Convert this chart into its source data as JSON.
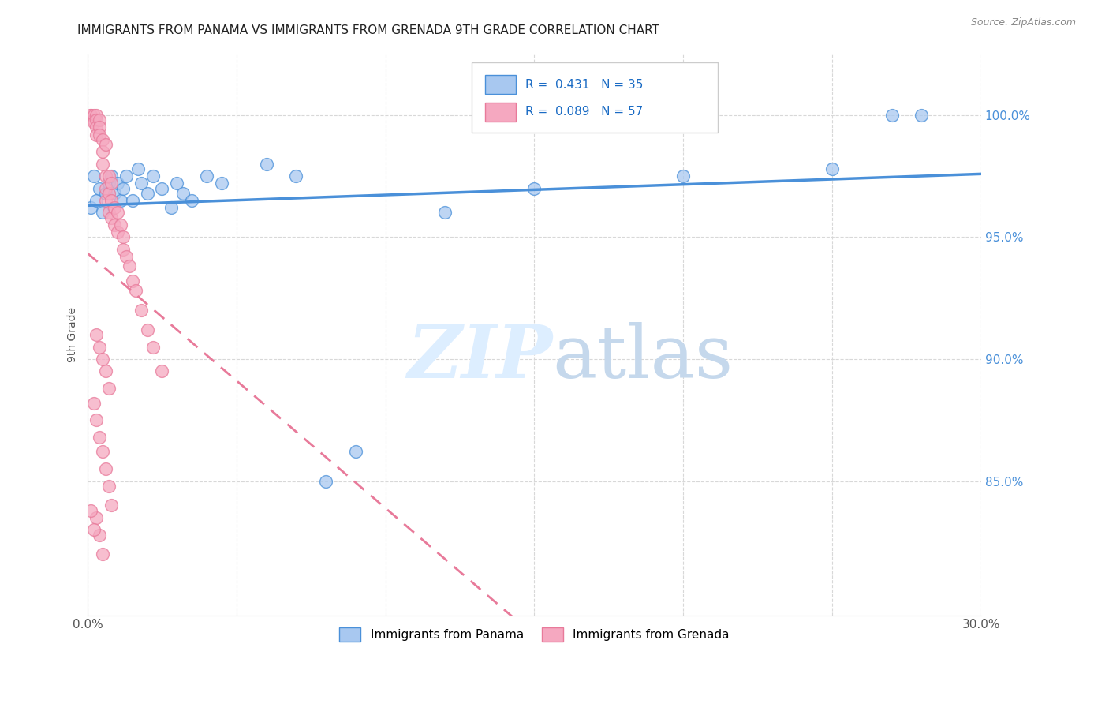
{
  "title": "IMMIGRANTS FROM PANAMA VS IMMIGRANTS FROM GRENADA 9TH GRADE CORRELATION CHART",
  "source": "Source: ZipAtlas.com",
  "ylabel": "9th Grade",
  "ytick_labels": [
    "100.0%",
    "95.0%",
    "90.0%",
    "85.0%"
  ],
  "ytick_values": [
    1.0,
    0.95,
    0.9,
    0.85
  ],
  "xlim": [
    0.0,
    0.3
  ],
  "ylim": [
    0.795,
    1.025
  ],
  "panama_color": "#a8c8f0",
  "grenada_color": "#f5a8c0",
  "panama_line_color": "#4a90d9",
  "grenada_line_color": "#e87a9a",
  "panama_x": [
    0.001,
    0.002,
    0.003,
    0.004,
    0.005,
    0.006,
    0.007,
    0.008,
    0.009,
    0.01,
    0.011,
    0.012,
    0.013,
    0.015,
    0.017,
    0.018,
    0.02,
    0.022,
    0.025,
    0.028,
    0.03,
    0.032,
    0.035,
    0.04,
    0.045,
    0.06,
    0.07,
    0.08,
    0.09,
    0.12,
    0.15,
    0.2,
    0.25,
    0.27,
    0.28
  ],
  "panama_y": [
    0.962,
    0.975,
    0.965,
    0.97,
    0.96,
    0.968,
    0.972,
    0.975,
    0.968,
    0.972,
    0.965,
    0.97,
    0.975,
    0.965,
    0.978,
    0.972,
    0.968,
    0.975,
    0.97,
    0.962,
    0.972,
    0.968,
    0.965,
    0.975,
    0.972,
    0.98,
    0.975,
    0.85,
    0.862,
    0.96,
    0.97,
    0.975,
    0.978,
    1.0,
    1.0
  ],
  "grenada_x": [
    0.001,
    0.001,
    0.002,
    0.002,
    0.002,
    0.003,
    0.003,
    0.003,
    0.003,
    0.004,
    0.004,
    0.004,
    0.005,
    0.005,
    0.005,
    0.006,
    0.006,
    0.006,
    0.006,
    0.007,
    0.007,
    0.007,
    0.008,
    0.008,
    0.008,
    0.009,
    0.009,
    0.01,
    0.01,
    0.011,
    0.012,
    0.012,
    0.013,
    0.014,
    0.015,
    0.016,
    0.018,
    0.02,
    0.022,
    0.025,
    0.003,
    0.004,
    0.005,
    0.006,
    0.007,
    0.002,
    0.003,
    0.004,
    0.005,
    0.006,
    0.007,
    0.008,
    0.003,
    0.004,
    0.005,
    0.001,
    0.002
  ],
  "grenada_y": [
    1.0,
    1.0,
    0.998,
    1.0,
    0.997,
    1.0,
    0.998,
    0.995,
    0.992,
    0.998,
    0.995,
    0.992,
    0.99,
    0.985,
    0.98,
    0.988,
    0.975,
    0.97,
    0.965,
    0.975,
    0.968,
    0.96,
    0.972,
    0.965,
    0.958,
    0.962,
    0.955,
    0.96,
    0.952,
    0.955,
    0.95,
    0.945,
    0.942,
    0.938,
    0.932,
    0.928,
    0.92,
    0.912,
    0.905,
    0.895,
    0.91,
    0.905,
    0.9,
    0.895,
    0.888,
    0.882,
    0.875,
    0.868,
    0.862,
    0.855,
    0.848,
    0.84,
    0.835,
    0.828,
    0.82,
    0.838,
    0.83
  ],
  "legend_r1_text": "R =  0.431   N = 35",
  "legend_r2_text": "R =  0.089   N = 57",
  "legend_r_color": "#1a6bc4",
  "bottom_legend_labels": [
    "Immigrants from Panama",
    "Immigrants from Grenada"
  ]
}
